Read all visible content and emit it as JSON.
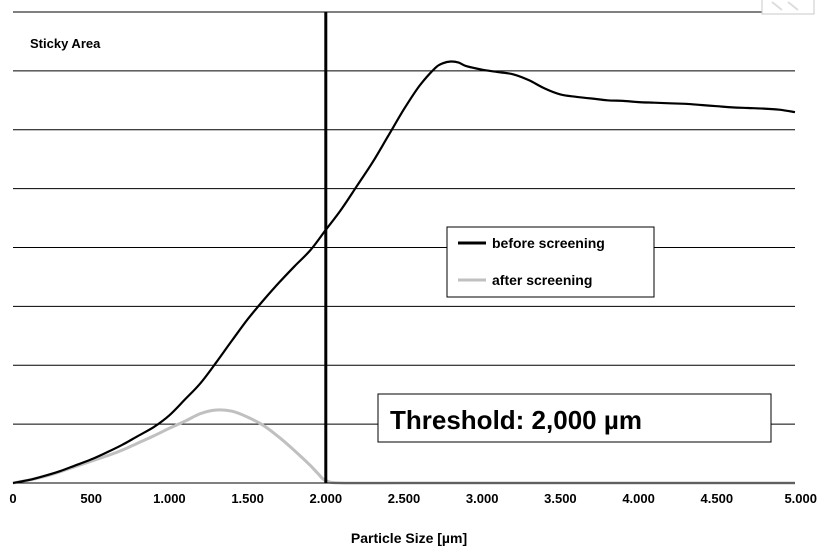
{
  "chart_data": {
    "type": "line",
    "ylabel": "Sticky Area",
    "xlabel": "Particle Size [µm]",
    "xlim": [
      0,
      5000
    ],
    "ylim": [
      0,
      8
    ],
    "x_ticks": [
      "0",
      "500",
      "1.000",
      "1.500",
      "2.000",
      "2.500",
      "3.000",
      "3.500",
      "4.000",
      "4.500",
      "5.000"
    ],
    "x_tick_values": [
      0,
      500,
      1000,
      1500,
      2000,
      2500,
      3000,
      3500,
      4000,
      4500,
      5000
    ],
    "y_gridlines": [
      1,
      2,
      3,
      4,
      5,
      6,
      7,
      8
    ],
    "grid": true,
    "legend_position": "center-right",
    "annotation": "Threshold: 2,000 µm",
    "threshold_x": 2000,
    "series": [
      {
        "name": "before screening",
        "color": "#000000",
        "x": [
          0,
          100,
          200,
          300,
          400,
          500,
          600,
          700,
          800,
          900,
          1000,
          1100,
          1200,
          1300,
          1400,
          1500,
          1600,
          1700,
          1800,
          1900,
          2000,
          2100,
          2200,
          2300,
          2400,
          2500,
          2600,
          2700,
          2750,
          2800,
          2850,
          2900,
          3000,
          3100,
          3200,
          3300,
          3400,
          3500,
          3600,
          3700,
          3800,
          3900,
          4000,
          4100,
          4200,
          4300,
          4400,
          4500,
          4600,
          4700,
          4800,
          4900,
          5000
        ],
        "y": [
          0,
          0.05,
          0.12,
          0.2,
          0.3,
          0.4,
          0.52,
          0.65,
          0.8,
          0.95,
          1.15,
          1.42,
          1.7,
          2.05,
          2.42,
          2.78,
          3.1,
          3.4,
          3.68,
          3.95,
          4.3,
          4.65,
          5.05,
          5.45,
          5.9,
          6.35,
          6.75,
          7.05,
          7.13,
          7.16,
          7.14,
          7.08,
          7.02,
          6.98,
          6.94,
          6.84,
          6.7,
          6.6,
          6.56,
          6.53,
          6.5,
          6.49,
          6.47,
          6.46,
          6.45,
          6.44,
          6.42,
          6.4,
          6.38,
          6.37,
          6.36,
          6.34,
          6.3
        ]
      },
      {
        "name": "after screening",
        "color": "#c0c0c0",
        "x": [
          0,
          100,
          200,
          300,
          400,
          500,
          600,
          700,
          800,
          900,
          1000,
          1100,
          1200,
          1300,
          1400,
          1500,
          1600,
          1700,
          1800,
          1900,
          1950,
          2000,
          2100,
          2500,
          3000,
          3500,
          4000,
          4500,
          5000
        ],
        "y": [
          0,
          0.05,
          0.11,
          0.19,
          0.28,
          0.37,
          0.46,
          0.56,
          0.68,
          0.8,
          0.93,
          1.05,
          1.18,
          1.24,
          1.22,
          1.12,
          0.98,
          0.78,
          0.55,
          0.3,
          0.16,
          0.04,
          0,
          0,
          0,
          0,
          0,
          0,
          0
        ]
      }
    ]
  }
}
